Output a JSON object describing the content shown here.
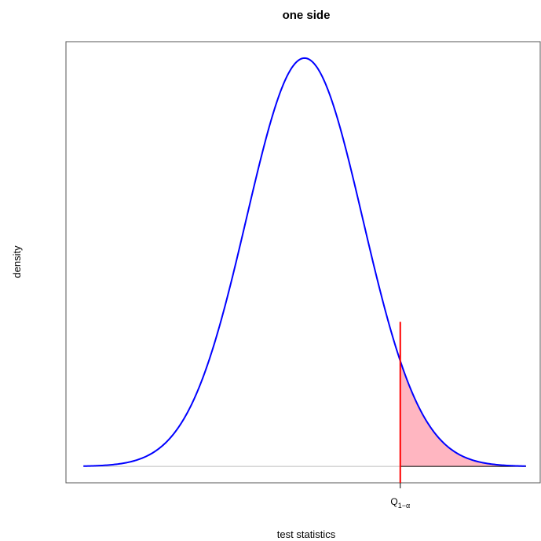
{
  "chart_data": {
    "type": "line",
    "title": "one side",
    "xlabel": "test statistics",
    "ylabel": "density",
    "distribution": "normal",
    "mean": 0,
    "sd": 1,
    "xlim": [
      -4.1,
      4.05
    ],
    "ylim": [
      -0.016,
      0.415
    ],
    "x_range": [
      -3.8,
      3.8
    ],
    "critical_value": 1.645,
    "critical_label": "Q",
    "critical_label_sub": "1−α",
    "shaded_region": {
      "from": 1.645,
      "to": 3.8,
      "side": "upper"
    },
    "series": [
      {
        "values_from": "normal_density",
        "color": "#0000ff"
      }
    ],
    "grid": false,
    "colors": {
      "curve": "#0000ff",
      "critical_line": "#ff0000",
      "shade_fill": "#ffb6c1",
      "shade_border": "#000000",
      "baseline": "#bebebe",
      "frame": "#555555"
    }
  }
}
